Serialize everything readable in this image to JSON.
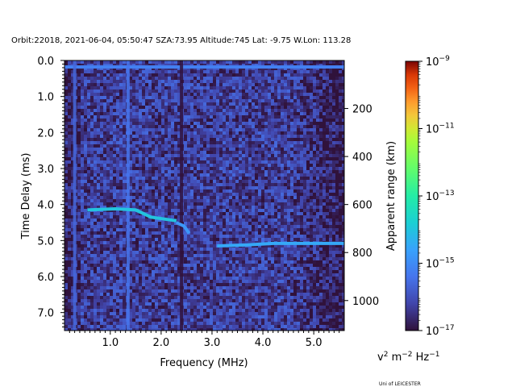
{
  "chart_data": {
    "type": "heatmap",
    "title": "Orbit:22018, 2021-06-04, 05:50:47 SZA:73.95 Altitude:745 Lat: -9.75 W.Lon: 113.28",
    "xlabel": "Frequency (MHz)",
    "ylabel": "Time Delay (ms)",
    "y2label": "Apparent range (km)",
    "colorbar_label": "v",
    "colorbar_label_sup1": "2",
    "colorbar_label_mid": " m",
    "colorbar_label_sup2": "−2",
    "colorbar_label_end": " Hz",
    "colorbar_label_sup3": "−1",
    "credit": "Uni of LEICESTER",
    "xlim": [
      0.1,
      5.6
    ],
    "ylim": [
      7.5,
      0.0
    ],
    "y2lim": [
      1125,
      0
    ],
    "x_ticks": [
      1.0,
      2.0,
      3.0,
      4.0,
      5.0
    ],
    "x_tick_labels": [
      "1.0",
      "2.0",
      "3.0",
      "4.0",
      "5.0"
    ],
    "y_ticks": [
      0.0,
      1.0,
      2.0,
      3.0,
      4.0,
      5.0,
      6.0,
      7.0
    ],
    "y_tick_labels": [
      "0.0",
      "1.0",
      "2.0",
      "3.0",
      "4.0",
      "5.0",
      "6.0",
      "7.0"
    ],
    "y2_ticks": [
      200,
      400,
      600,
      800,
      1000
    ],
    "y2_tick_labels": [
      "200",
      "400",
      "600",
      "800",
      "1000"
    ],
    "color_scale": "log",
    "color_range": [
      1e-17,
      1e-09
    ],
    "colorbar_ticks": [
      -17,
      -15,
      -13,
      -11,
      -9
    ],
    "colorbar_tick_base": "10",
    "colorbar_tick_exps": [
      "−17",
      "−15",
      "−13",
      "−11",
      "−9"
    ],
    "colormap": "turbo",
    "background_level_log10": -16.3,
    "features": [
      {
        "kind": "horizontal-line",
        "y": 0.18,
        "x_range": [
          0.1,
          5.6
        ],
        "level_log10": -15.2
      },
      {
        "kind": "vertical-line",
        "x": 0.3,
        "y_range": [
          0.0,
          7.5
        ],
        "level_log10": -15.6
      },
      {
        "kind": "vertical-line",
        "x": 1.35,
        "y_range": [
          0.0,
          7.5
        ],
        "level_log10": -15.4
      },
      {
        "kind": "vertical-line-dark",
        "x": 2.4,
        "y_range": [
          0.0,
          7.5
        ],
        "level_log10": -17.0
      },
      {
        "kind": "trace",
        "points": [
          [
            0.55,
            4.15
          ],
          [
            1.1,
            4.12
          ],
          [
            1.5,
            4.15
          ],
          [
            1.8,
            4.35
          ],
          [
            2.3,
            4.45
          ]
        ],
        "level_log10": -14.0
      },
      {
        "kind": "trace",
        "points": [
          [
            2.3,
            4.5
          ],
          [
            2.45,
            4.6
          ],
          [
            2.55,
            4.8
          ]
        ],
        "level_log10": -14.8
      },
      {
        "kind": "trace",
        "points": [
          [
            3.1,
            5.15
          ],
          [
            3.7,
            5.12
          ],
          [
            4.2,
            5.08
          ],
          [
            5.6,
            5.08
          ]
        ],
        "level_log10": -14.5
      }
    ]
  }
}
